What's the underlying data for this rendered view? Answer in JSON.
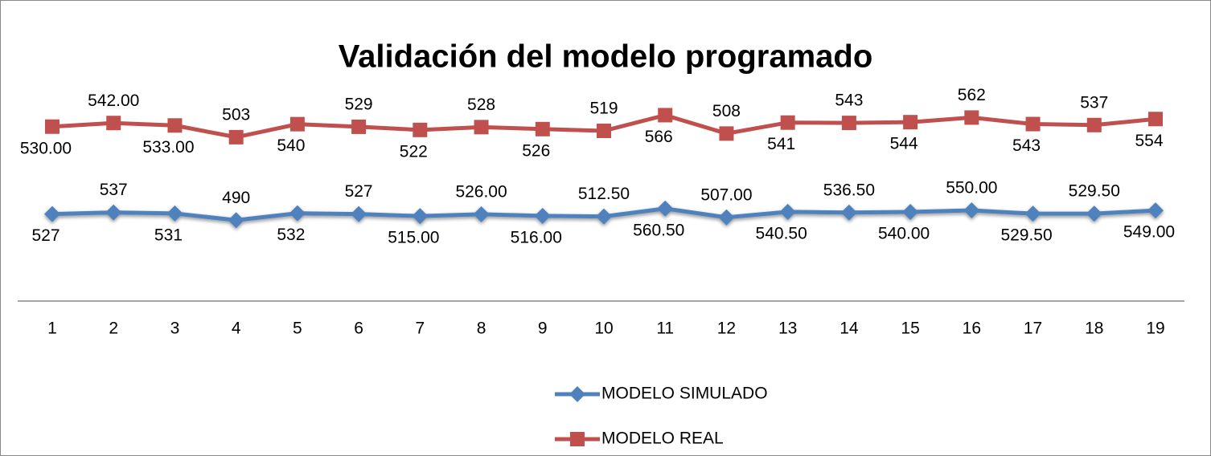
{
  "chart_data": {
    "type": "line",
    "stacked": true,
    "title": "Validación del modelo programado",
    "categories": [
      "1",
      "2",
      "3",
      "4",
      "5",
      "6",
      "7",
      "8",
      "9",
      "10",
      "11",
      "12",
      "13",
      "14",
      "15",
      "16",
      "17",
      "18",
      "19"
    ],
    "ylim": [
      0,
      1800
    ],
    "series": [
      {
        "name": "MODELO SIMULADO",
        "color": "#4f81bd",
        "marker": "diamond",
        "values": [
          527,
          537,
          531,
          490,
          532,
          527,
          515,
          526,
          516,
          512.5,
          560.5,
          507,
          540.5,
          536.5,
          540,
          550,
          529.5,
          529.5,
          549
        ],
        "value_labels": [
          "527",
          "537",
          "531",
          "490",
          "532",
          "527",
          "515.00",
          "526.00",
          "516.00",
          "512.50",
          "560.50",
          "507.00",
          "540.50",
          "536.50",
          "540.00",
          "550.00",
          "529.50",
          "529.50",
          "549.00"
        ]
      },
      {
        "name": "MODELO REAL",
        "color": "#c0504d",
        "marker": "square",
        "values": [
          530,
          542,
          533,
          503,
          540,
          529,
          522,
          528,
          526,
          519,
          566,
          508,
          541,
          543,
          544,
          562,
          543,
          537,
          554
        ],
        "value_labels": [
          "530.00",
          "542.00",
          "533.00",
          "503",
          "540",
          "529",
          "522",
          "528",
          "526",
          "519",
          "566",
          "508",
          "541",
          "543",
          "544",
          "562",
          "543",
          "537",
          "554"
        ]
      }
    ]
  }
}
